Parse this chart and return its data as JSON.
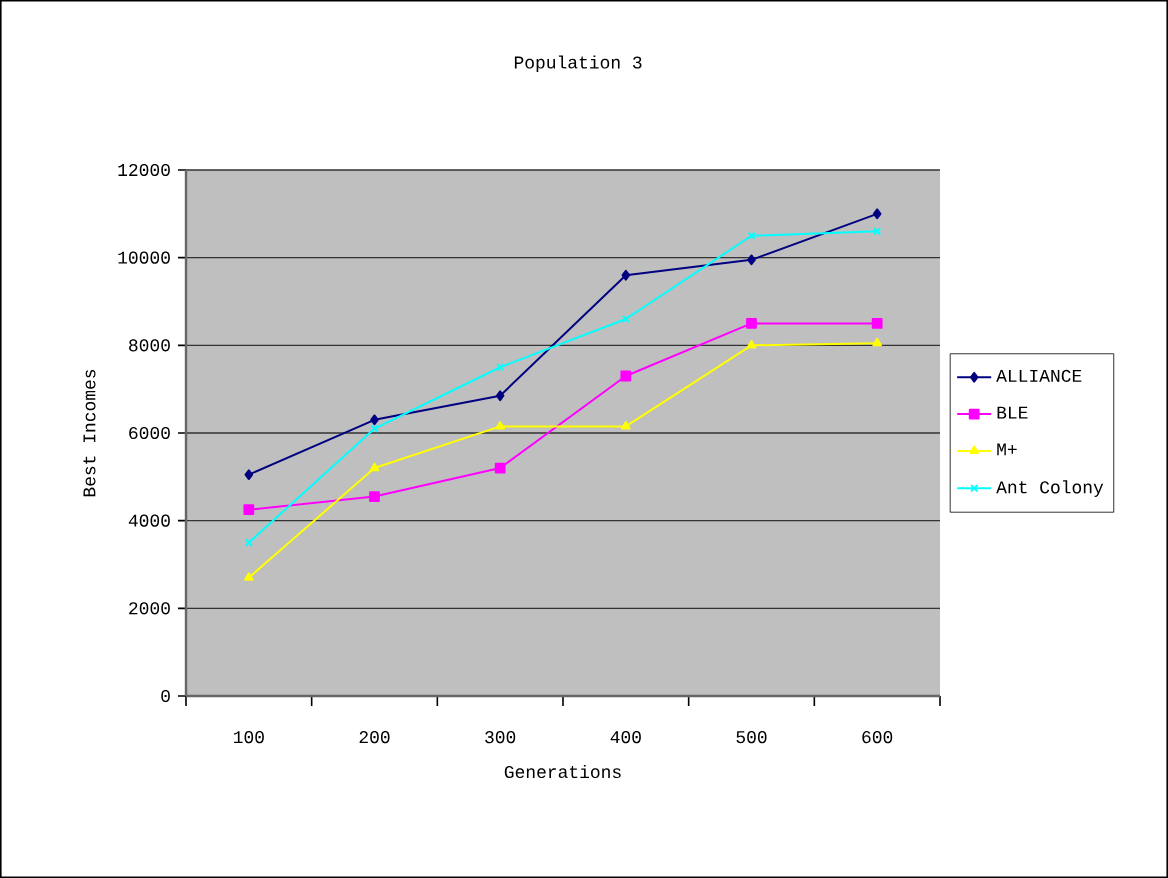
{
  "chart_data": {
    "type": "line",
    "title": "Population 3",
    "xlabel": "Generations",
    "ylabel": "Best Incomes",
    "categories": [
      "100",
      "200",
      "300",
      "400",
      "500",
      "600"
    ],
    "ylim": [
      0,
      12000
    ],
    "yticks": [
      0,
      2000,
      4000,
      6000,
      8000,
      10000,
      12000
    ],
    "grid": "y",
    "legend": "right",
    "series": [
      {
        "name": "ALLIANCE",
        "color": "#000080",
        "marker": "diamond",
        "values": [
          5050,
          6300,
          6850,
          9600,
          9950,
          11000
        ]
      },
      {
        "name": "BLE",
        "color": "#ff00ff",
        "marker": "square",
        "values": [
          4250,
          4550,
          5200,
          7300,
          8500,
          8500
        ]
      },
      {
        "name": "M+",
        "color": "#ffff00",
        "marker": "triangle",
        "values": [
          2700,
          5200,
          6150,
          6150,
          8000,
          8050
        ]
      },
      {
        "name": "Ant Colony",
        "color": "#00ffff",
        "marker": "cross",
        "values": [
          3500,
          6100,
          7500,
          8600,
          10500,
          10600
        ]
      }
    ]
  }
}
